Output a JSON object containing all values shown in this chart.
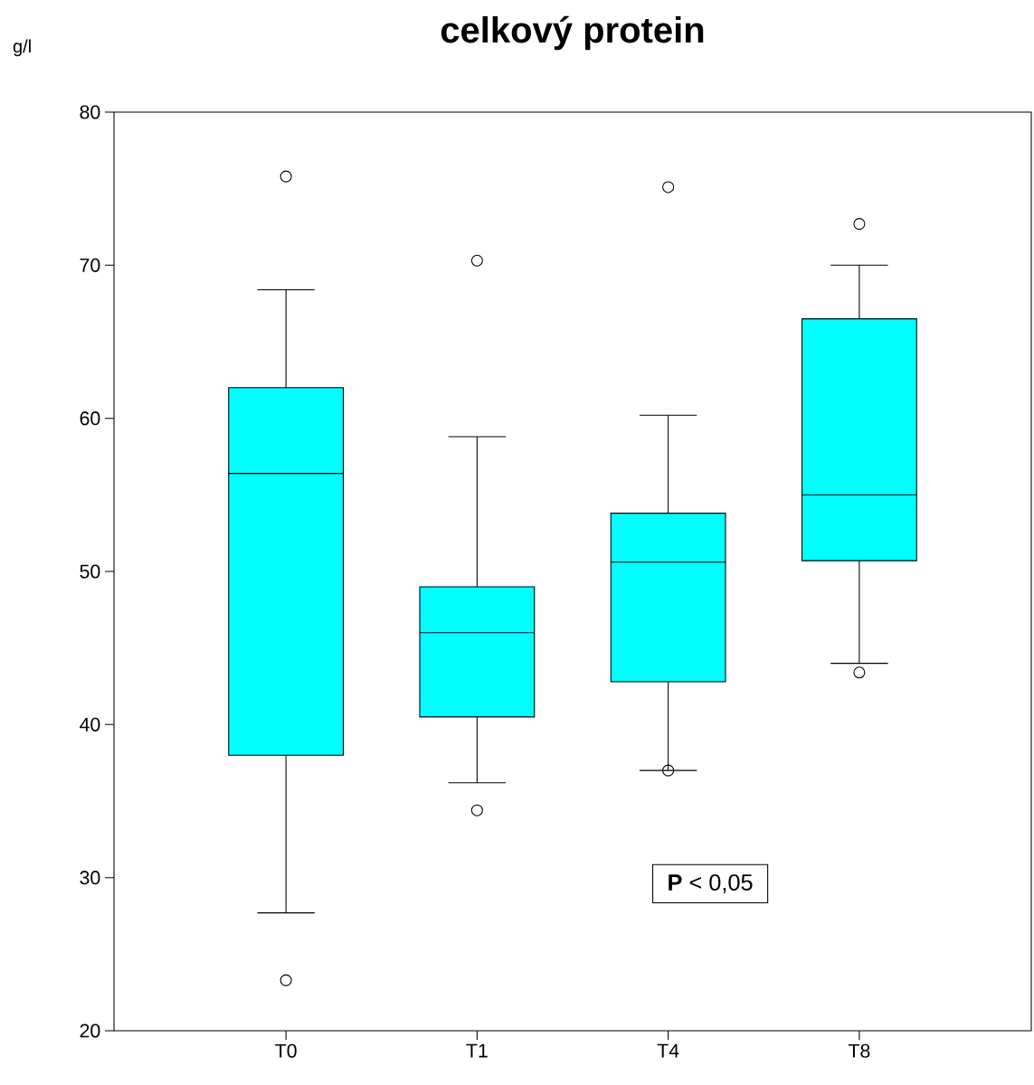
{
  "chart_data": {
    "type": "box",
    "title": "celkový protein",
    "ylabel": "g/l",
    "categories": [
      "T0",
      "T1",
      "T4",
      "T8"
    ],
    "color": "#00ffff",
    "boxes": [
      {
        "low": 27.7,
        "q1": 38.0,
        "median": 56.4,
        "q3": 62.0,
        "high": 68.4,
        "outliers": [
          75.8,
          23.3
        ]
      },
      {
        "low": 36.2,
        "q1": 40.5,
        "median": 46.0,
        "q3": 49.0,
        "high": 58.8,
        "outliers": [
          70.3,
          34.4
        ]
      },
      {
        "low": 37.0,
        "q1": 42.8,
        "median": 50.6,
        "q3": 53.8,
        "high": 60.2,
        "outliers": [
          75.1,
          37.0
        ]
      },
      {
        "low": 44.0,
        "q1": 50.7,
        "median": 55.0,
        "q3": 66.5,
        "high": 70.0,
        "outliers": [
          72.7,
          43.4
        ]
      }
    ],
    "ylim": [
      20,
      80
    ],
    "yticks": [
      20,
      30,
      40,
      50,
      60,
      70,
      80
    ],
    "annotations": [
      "**P** < 0,05"
    ]
  }
}
